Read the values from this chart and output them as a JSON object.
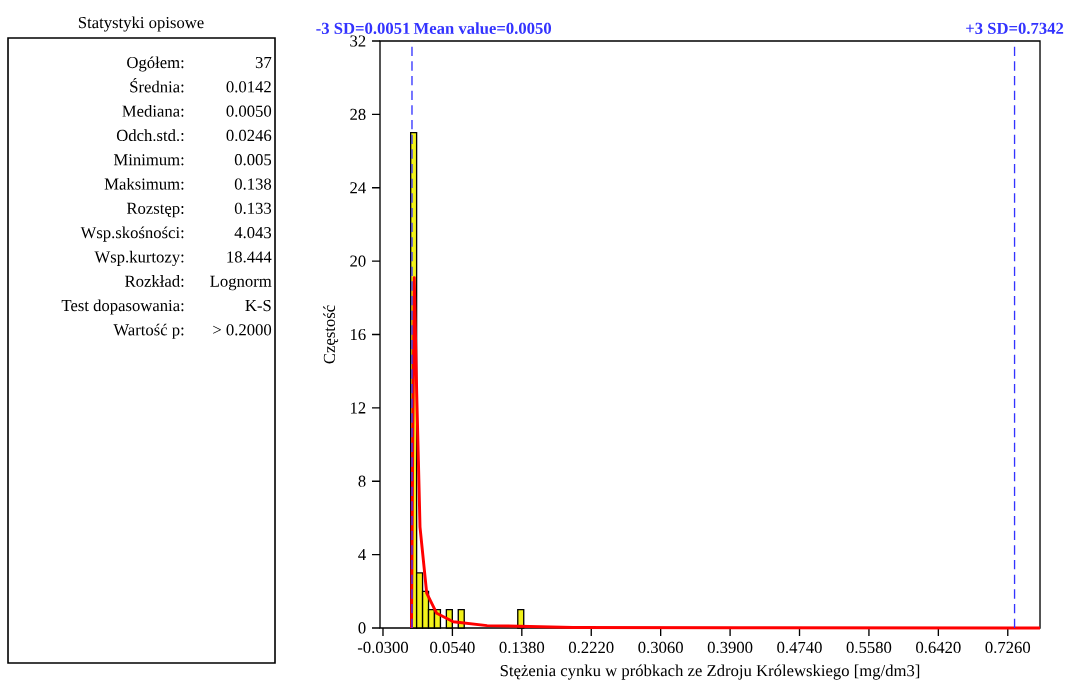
{
  "chart_data": [
    {
      "type": "other",
      "title": "Statystyki opisowe",
      "annotations": [
        "Ogółem:",
        "37",
        "Średnia:",
        "0.0142",
        "Mediana:",
        "0.0050",
        "Odch.std.:",
        "0.0246",
        "Minimum:",
        "0.005",
        "Maksimum:",
        "0.138",
        "Rozstęp:",
        "0.133",
        "Wsp.skośności:",
        "4.043",
        "Wsp.kurtozy:",
        "18.444",
        "Rozkład:",
        "Lognorm",
        "Test dopasowania:",
        "K-S",
        "Wartość p:",
        "> 0.2000"
      ]
    },
    {
      "type": "histogram",
      "xlabel": "Stężenia cynku w próbkach ze Zdroju Królewskiego [mg/dm3]",
      "ylabel": "Częstość",
      "color": "#f2f21a",
      "bins": [
        0.0035,
        0.0107,
        0.0179,
        0.0251,
        0.0323,
        0.0395,
        0.0467,
        0.0539,
        0.0611,
        0.0683,
        0.0755,
        0.0827,
        0.0899,
        0.0971,
        0.1043,
        0.1115,
        0.1187,
        0.1259,
        0.1331,
        0.1403
      ],
      "values": [
        27,
        3,
        2,
        1,
        1,
        0,
        1,
        0,
        1,
        0,
        0,
        0,
        0,
        0,
        0,
        0,
        0,
        0,
        1
      ],
      "series": [
        {
          "type": "line",
          "color": "#ff0000",
          "x": [
            0.0045,
            0.006,
            0.0078,
            0.0108,
            0.0128,
            0.0148,
            0.0229,
            0.035,
            0.055,
            0.096,
            0.2,
            0.4,
            0.765
          ],
          "values": [
            0,
            10,
            19.1,
            12.8,
            9.2,
            5.5,
            1.9,
            0.8,
            0.34,
            0.13,
            0.03,
            0.01,
            0
          ]
        }
      ],
      "xlim": [
        -0.0336,
        0.765
      ],
      "ylim": [
        0,
        32
      ],
      "xticks": [
        {
          "value": -0.03,
          "label": "-0.0300"
        },
        {
          "value": 0.054,
          "label": "0.0540"
        },
        {
          "value": 0.138,
          "label": "0.1380"
        },
        {
          "value": 0.222,
          "label": "0.2220"
        },
        {
          "value": 0.306,
          "label": "0.3060"
        },
        {
          "value": 0.39,
          "label": "0.3900"
        },
        {
          "value": 0.474,
          "label": "0.4740"
        },
        {
          "value": 0.558,
          "label": "0.5580"
        },
        {
          "value": 0.642,
          "label": "0.6420"
        },
        {
          "value": 0.726,
          "label": "0.7260"
        }
      ],
      "yticks": [
        0,
        4,
        8,
        12,
        16,
        20,
        24,
        28,
        32
      ],
      "annotations": [
        {
          "text": "Mean value=0.0050",
          "x": 0.005,
          "y": 32
        }
      ],
      "ref_lines": [
        {
          "axis": "x",
          "value": 0.0051,
          "label": "-3 SD=0.0051",
          "color": "#3333ff",
          "line_style": "dashed"
        },
        {
          "axis": "x",
          "value": 0.7342,
          "label": "+3 SD=0.7342",
          "color": "#3333ff",
          "line_style": "dashed"
        }
      ]
    }
  ]
}
